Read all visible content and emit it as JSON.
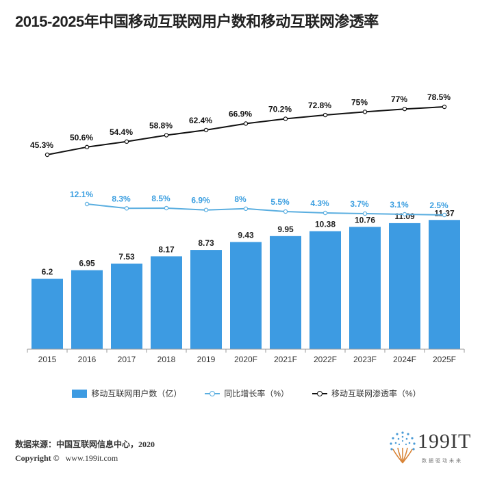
{
  "title": "2015-2025年中国移动互联网用户数和移动互联网渗透率",
  "chart_data": {
    "type": "bar",
    "categories": [
      "2015",
      "2016",
      "2017",
      "2018",
      "2019",
      "2020F",
      "2021F",
      "2022F",
      "2023F",
      "2024F",
      "2025F"
    ],
    "series": [
      {
        "name": "移动互联网用户数（亿）",
        "type": "bar",
        "values": [
          6.2,
          6.95,
          7.53,
          8.17,
          8.73,
          9.43,
          9.95,
          10.38,
          10.76,
          11.09,
          11.37
        ],
        "labels": [
          "6.2",
          "6.95",
          "7.53",
          "8.17",
          "8.73",
          "9.43",
          "9.95",
          "10.38",
          "10.76",
          "11.09",
          "11.37"
        ],
        "color": "#3d9be2"
      },
      {
        "name": "同比增长率（%）",
        "type": "line",
        "values": [
          null,
          12.1,
          8.3,
          8.5,
          6.9,
          8,
          5.5,
          4.3,
          3.7,
          3.1,
          2.5
        ],
        "labels": [
          "",
          "12.1%",
          "8.3%",
          "8.5%",
          "6.9%",
          "8%",
          "5.5%",
          "4.3%",
          "3.7%",
          "3.1%",
          "2.5%"
        ],
        "color": "#5aaee0"
      },
      {
        "name": "移动互联网渗透率（%）",
        "type": "line",
        "values": [
          45.3,
          50.6,
          54.4,
          58.8,
          62.4,
          66.9,
          70.2,
          72.8,
          75,
          77,
          78.5
        ],
        "labels": [
          "45.3%",
          "50.6%",
          "54.4%",
          "58.8%",
          "62.4%",
          "66.9%",
          "70.2%",
          "72.8%",
          "75%",
          "77%",
          "78.5%"
        ],
        "color": "#111111"
      }
    ],
    "grid": false,
    "legend_position": "bottom"
  },
  "footer": {
    "source": "数据来源：中国互联网信息中心，2020",
    "copyright_label": "Copyright ©",
    "copyright_site": "www.199it.com"
  },
  "logo": {
    "text": "199IT",
    "tagline": "数据驱动未来"
  }
}
